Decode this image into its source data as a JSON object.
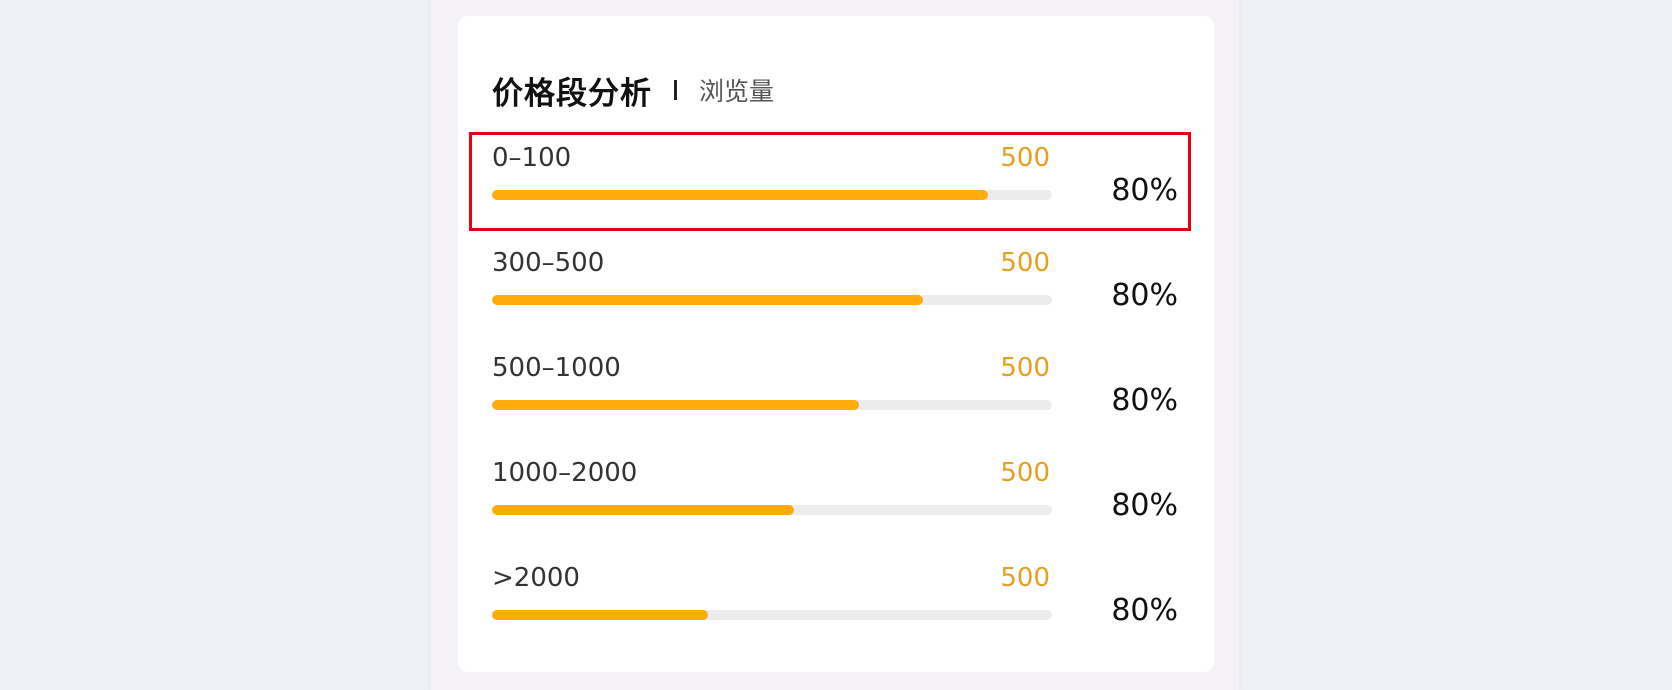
{
  "card": {
    "title": "价格段分析",
    "subtitle": "浏览量"
  },
  "rows": [
    {
      "label": "0–100",
      "value": "500",
      "percent": "80%",
      "fill": 0.885,
      "selected": true
    },
    {
      "label": "300–500",
      "value": "500",
      "percent": "80%",
      "fill": 0.77
    },
    {
      "label": "500–1000",
      "value": "500",
      "percent": "80%",
      "fill": 0.655
    },
    {
      "label": "1000–2000",
      "value": "500",
      "percent": "80%",
      "fill": 0.54
    },
    {
      "label": ">2000",
      "value": "500",
      "percent": "80%",
      "fill": 0.385
    }
  ],
  "colors": {
    "bar_fill": "#ffab0a",
    "bar_track": "#ececec",
    "value_text": "#e5a020",
    "highlight": "#e60012"
  }
}
